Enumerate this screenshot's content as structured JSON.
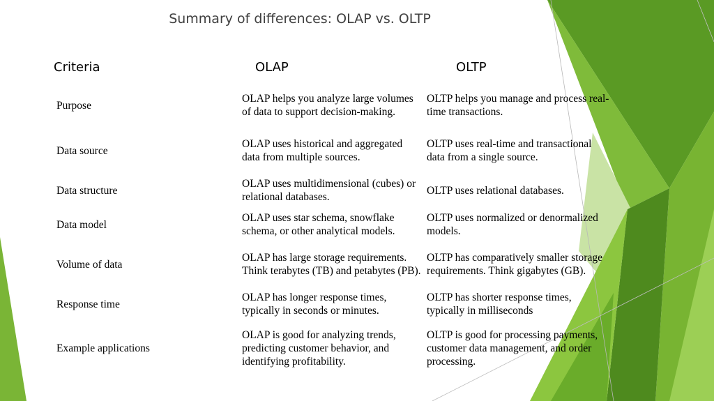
{
  "title": "Summary of differences: OLAP vs. OLTP",
  "headers": {
    "criteria": "Criteria",
    "olap": "OLAP",
    "oltp": "OLTP"
  },
  "rows": [
    {
      "criteria": "Purpose",
      "olap": "OLAP helps you analyze large volumes of data to support decision-making.",
      "oltp": "OLTP helps you manage and process real-time transactions."
    },
    {
      "criteria": "Data source",
      "olap": "OLAP uses historical and aggregated data from multiple sources.",
      "oltp": "OLTP uses real-time and transactional data from a single source."
    },
    {
      "criteria": "Data structure",
      "olap": "OLAP uses multidimensional (cubes) or relational databases.",
      "oltp": "OLTP uses relational databases."
    },
    {
      "criteria": "Data model",
      "olap": "OLAP uses star schema, snowflake schema, or other analytical models.",
      "oltp": "OLTP uses normalized or denormalized models."
    },
    {
      "criteria": "Volume of data",
      "olap": "OLAP has large storage requirements. Think terabytes (TB) and petabytes (PB).",
      "oltp": "OLTP has comparatively smaller storage requirements. Think gigabytes (GB)."
    },
    {
      "criteria": "Response time",
      "olap": "OLAP has longer response times, typically in seconds or minutes.",
      "oltp": "OLTP has shorter response times, typically in milliseconds"
    },
    {
      "criteria": "Example applications",
      "olap": "OLAP is good for analyzing trends, predicting customer behavior, and identifying profitability.",
      "oltp": "OLTP is good for processing payments, customer data management, and order processing."
    }
  ],
  "colors": {
    "green_dark": "#4e8a1e",
    "green_mid": "#6aac2a",
    "green_light": "#8cc63f",
    "green_pale": "#c9e3a5"
  }
}
